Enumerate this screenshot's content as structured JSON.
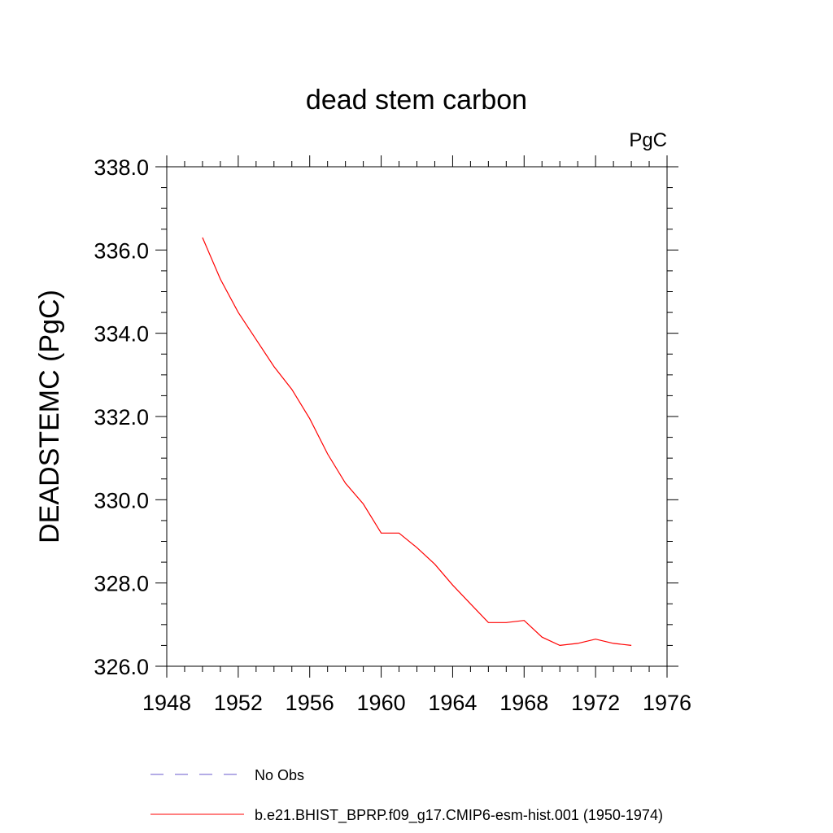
{
  "chart_data": {
    "type": "line",
    "title": "dead stem carbon",
    "units_label": "PgC",
    "ylabel": "DEADSTEMC  (PgC)",
    "xlabel": "",
    "xlim": [
      1948,
      1976
    ],
    "ylim": [
      326.0,
      338.0
    ],
    "x_ticks": [
      "1948",
      "1952",
      "1956",
      "1960",
      "1964",
      "1968",
      "1972",
      "1976"
    ],
    "y_ticks": [
      "326.0",
      "328.0",
      "330.0",
      "332.0",
      "334.0",
      "336.0",
      "338.0"
    ],
    "grid": false,
    "legend_placement": "bottom",
    "series": [
      {
        "name": "b.e21.BHIST_BPRP.f09_g17.CMIP6-esm-hist.001 (1950-1974)",
        "color": "#ff0000",
        "style": "solid",
        "x": [
          1950,
          1951,
          1952,
          1953,
          1954,
          1955,
          1956,
          1957,
          1958,
          1959,
          1960,
          1961,
          1962,
          1963,
          1964,
          1965,
          1966,
          1967,
          1968,
          1969,
          1970,
          1971,
          1972,
          1973,
          1974
        ],
        "y": [
          336.3,
          335.3,
          334.5,
          333.85,
          333.2,
          332.65,
          331.95,
          331.1,
          330.4,
          329.9,
          329.2,
          329.2,
          328.85,
          328.45,
          327.95,
          327.5,
          327.05,
          327.05,
          327.1,
          326.7,
          326.5,
          326.55,
          326.65,
          326.55,
          326.5
        ]
      }
    ],
    "legend": [
      {
        "label": "No Obs",
        "color": "#6a5acd",
        "style": "dashed"
      },
      {
        "label": "b.e21.BHIST_BPRP.f09_g17.CMIP6-esm-hist.001 (1950-1974)",
        "color": "#ff0000",
        "style": "solid"
      }
    ]
  }
}
